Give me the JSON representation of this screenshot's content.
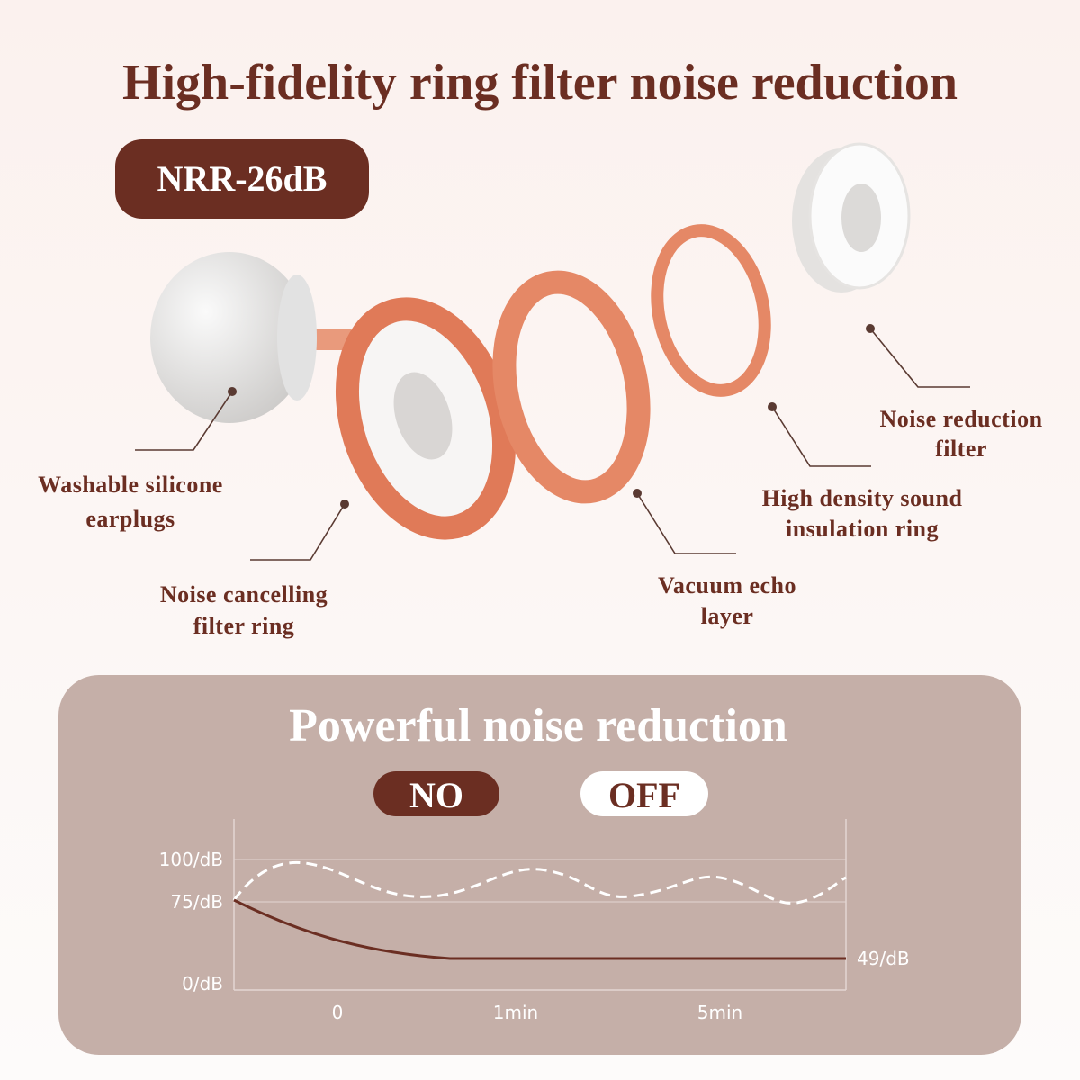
{
  "header": {
    "title": "High-fidelity ring filter noise reduction",
    "badge": "NRR-26dB"
  },
  "components": [
    {
      "lines": [
        "Washable silicone",
        "earplugs"
      ]
    },
    {
      "lines": [
        "Noise cancelling",
        "filter ring"
      ]
    },
    {
      "lines": [
        "Vacuum echo",
        "layer"
      ]
    },
    {
      "lines": [
        "High density sound",
        "insulation ring"
      ]
    },
    {
      "lines": [
        "Noise reduction",
        "filter"
      ]
    }
  ],
  "panel": {
    "title": "Powerful noise reduction",
    "toggle": {
      "on": "NO",
      "off": "OFF"
    },
    "chart": {
      "y_labels": [
        "100/dB",
        "75/dB",
        "0/dB"
      ],
      "x_labels": [
        "0",
        "1min",
        "5min"
      ],
      "end_label": "49/dB"
    }
  }
}
